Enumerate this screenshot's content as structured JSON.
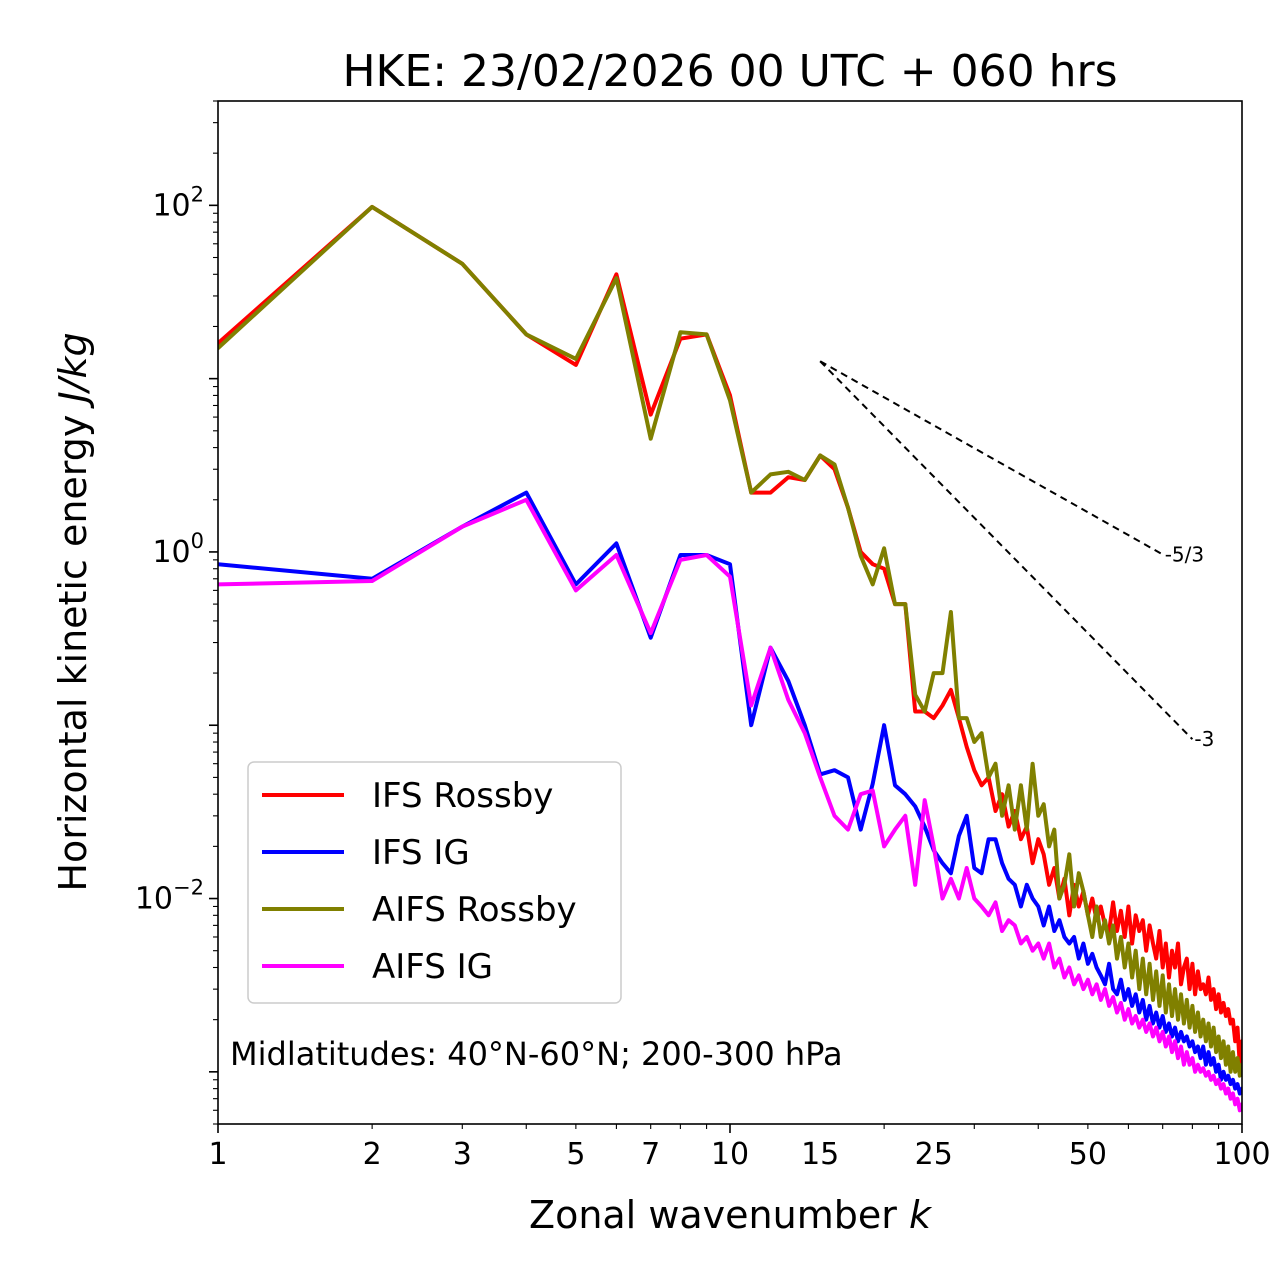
{
  "chart_data": {
    "type": "line",
    "title": "HKE: 23/02/2026 00 UTC + 060 hrs",
    "xlabel": "Zonal wavenumber",
    "xlabel_var": "k",
    "ylabel": "Horizontal kinetic energy",
    "ylabel_unit": "J/kg",
    "xscale": "log",
    "yscale": "log",
    "xlim": [
      1,
      100
    ],
    "ylim": [
      0.0005,
      400
    ],
    "x_ticks": [
      {
        "value": 1,
        "label": "1"
      },
      {
        "value": 2,
        "label": "2"
      },
      {
        "value": 3,
        "label": "3"
      },
      {
        "value": 5,
        "label": "5"
      },
      {
        "value": 7,
        "label": "7"
      },
      {
        "value": 10,
        "label": "10"
      },
      {
        "value": 15,
        "label": "15"
      },
      {
        "value": 25,
        "label": "25"
      },
      {
        "value": 50,
        "label": "50"
      },
      {
        "value": 100,
        "label": "100"
      }
    ],
    "y_ticks": [
      {
        "value": 100,
        "base": "10",
        "exp": "2"
      },
      {
        "value": 1,
        "base": "10",
        "exp": "0"
      },
      {
        "value": 0.01,
        "base": "10",
        "exp": "−2"
      }
    ],
    "annotation": "Midlatitudes: 40°N-60°N; 200-300 hPa",
    "legend_position": "lower-left",
    "reference_slopes": [
      {
        "label": "-5/3",
        "slope": -1.6667,
        "x": [
          15,
          70
        ],
        "y0": 12.6
      },
      {
        "label": "-3",
        "slope": -3,
        "x": [
          15,
          80
        ],
        "y0": 12.6
      }
    ],
    "series": [
      {
        "name": "IFS Rossby",
        "color": "#ff0000",
        "x": [
          1,
          2,
          3,
          4,
          5,
          6,
          7,
          8,
          9,
          10,
          11,
          12,
          13,
          14,
          15,
          16,
          17,
          18,
          19,
          20,
          21,
          22,
          23,
          24,
          25,
          26,
          27,
          28,
          29,
          30,
          31,
          32,
          33,
          34,
          35,
          36,
          37,
          38,
          39,
          40,
          41,
          42,
          43,
          44,
          45,
          46,
          47,
          48,
          49,
          50,
          51,
          52,
          53,
          54,
          55,
          56,
          57,
          58,
          59,
          60,
          61,
          62,
          63,
          64,
          65,
          66,
          67,
          68,
          69,
          70,
          71,
          72,
          73,
          74,
          75,
          76,
          77,
          78,
          79,
          80,
          81,
          82,
          83,
          84,
          85,
          86,
          87,
          88,
          89,
          90,
          91,
          92,
          93,
          94,
          95,
          96,
          97,
          98,
          99,
          100
        ],
        "values": [
          16,
          98,
          46,
          18,
          12,
          40,
          6.2,
          17,
          18,
          8,
          2.2,
          2.2,
          2.7,
          2.6,
          3.6,
          3,
          1.8,
          1.0,
          0.85,
          0.8,
          0.5,
          0.5,
          0.12,
          0.12,
          0.11,
          0.13,
          0.16,
          0.11,
          0.075,
          0.055,
          0.045,
          0.05,
          0.032,
          0.04,
          0.026,
          0.032,
          0.022,
          0.026,
          0.016,
          0.022,
          0.018,
          0.012,
          0.015,
          0.01,
          0.013,
          0.008,
          0.012,
          0.009,
          0.011,
          0.008,
          0.01,
          0.0075,
          0.009,
          0.007,
          0.0065,
          0.0095,
          0.0065,
          0.0085,
          0.006,
          0.009,
          0.0055,
          0.008,
          0.0065,
          0.0075,
          0.005,
          0.007,
          0.0055,
          0.0045,
          0.0065,
          0.004,
          0.0055,
          0.0035,
          0.005,
          0.004,
          0.0055,
          0.0032,
          0.004,
          0.0045,
          0.003,
          0.0042,
          0.0028,
          0.0038,
          0.003,
          0.0032,
          0.0028,
          0.0035,
          0.0026,
          0.003,
          0.0023,
          0.0028,
          0.0022,
          0.0025,
          0.0021,
          0.0023,
          0.0019,
          0.002,
          0.0015,
          0.0018,
          0.0011,
          0.0015
        ]
      },
      {
        "name": "IFS IG",
        "color": "#0000ff",
        "x": [
          1,
          2,
          3,
          4,
          5,
          6,
          7,
          8,
          9,
          10,
          11,
          12,
          13,
          14,
          15,
          16,
          17,
          18,
          19,
          20,
          21,
          22,
          23,
          24,
          25,
          26,
          27,
          28,
          29,
          30,
          31,
          32,
          33,
          34,
          35,
          36,
          37,
          38,
          39,
          40,
          41,
          42,
          43,
          44,
          45,
          46,
          47,
          48,
          49,
          50,
          51,
          52,
          53,
          54,
          55,
          56,
          57,
          58,
          59,
          60,
          61,
          62,
          63,
          64,
          65,
          66,
          67,
          68,
          69,
          70,
          71,
          72,
          73,
          74,
          75,
          76,
          77,
          78,
          79,
          80,
          81,
          82,
          83,
          84,
          85,
          86,
          87,
          88,
          89,
          90,
          91,
          92,
          93,
          94,
          95,
          96,
          97,
          98,
          99,
          100
        ],
        "values": [
          0.85,
          0.7,
          1.4,
          2.2,
          0.65,
          1.12,
          0.32,
          0.96,
          0.96,
          0.85,
          0.1,
          0.28,
          0.18,
          0.1,
          0.052,
          0.055,
          0.05,
          0.025,
          0.046,
          0.1,
          0.045,
          0.04,
          0.034,
          0.026,
          0.019,
          0.016,
          0.014,
          0.023,
          0.03,
          0.015,
          0.014,
          0.022,
          0.022,
          0.016,
          0.013,
          0.012,
          0.009,
          0.012,
          0.01,
          0.009,
          0.007,
          0.009,
          0.0065,
          0.0075,
          0.006,
          0.0055,
          0.006,
          0.0045,
          0.0055,
          0.0042,
          0.0048,
          0.004,
          0.0036,
          0.0032,
          0.0042,
          0.003,
          0.0028,
          0.0034,
          0.0026,
          0.003,
          0.0024,
          0.0028,
          0.0022,
          0.0026,
          0.002,
          0.0024,
          0.0019,
          0.0022,
          0.0018,
          0.0021,
          0.0017,
          0.0019,
          0.0016,
          0.0018,
          0.0015,
          0.0017,
          0.0015,
          0.0016,
          0.0014,
          0.0015,
          0.0013,
          0.0014,
          0.0012,
          0.0014,
          0.0011,
          0.0013,
          0.0011,
          0.0012,
          0.001,
          0.0011,
          0.0009,
          0.001,
          0.0009,
          0.00095,
          0.00085,
          0.0009,
          0.0008,
          0.00085,
          0.00075,
          0.0008
        ]
      },
      {
        "name": "AIFS Rossby",
        "color": "#808000",
        "x": [
          1,
          2,
          3,
          4,
          5,
          6,
          7,
          8,
          9,
          10,
          11,
          12,
          13,
          14,
          15,
          16,
          17,
          18,
          19,
          20,
          21,
          22,
          23,
          24,
          25,
          26,
          27,
          28,
          29,
          30,
          31,
          32,
          33,
          34,
          35,
          36,
          37,
          38,
          39,
          40,
          41,
          42,
          43,
          44,
          45,
          46,
          47,
          48,
          49,
          50,
          51,
          52,
          53,
          54,
          55,
          56,
          57,
          58,
          59,
          60,
          61,
          62,
          63,
          64,
          65,
          66,
          67,
          68,
          69,
          70,
          71,
          72,
          73,
          74,
          75,
          76,
          77,
          78,
          79,
          80,
          81,
          82,
          83,
          84,
          85,
          86,
          87,
          88,
          89,
          90,
          91,
          92,
          93,
          94,
          95,
          96,
          97,
          98,
          99,
          100
        ],
        "values": [
          15,
          98,
          46,
          18,
          13,
          38,
          4.5,
          18.5,
          18,
          7.5,
          2.2,
          2.8,
          2.9,
          2.6,
          3.6,
          3.2,
          1.8,
          0.95,
          0.65,
          1.05,
          0.5,
          0.5,
          0.15,
          0.12,
          0.2,
          0.2,
          0.45,
          0.11,
          0.11,
          0.08,
          0.09,
          0.05,
          0.06,
          0.03,
          0.045,
          0.025,
          0.045,
          0.025,
          0.06,
          0.03,
          0.035,
          0.02,
          0.025,
          0.01,
          0.012,
          0.018,
          0.009,
          0.014,
          0.011,
          0.008,
          0.006,
          0.009,
          0.006,
          0.0075,
          0.0055,
          0.007,
          0.0045,
          0.006,
          0.004,
          0.0055,
          0.0035,
          0.005,
          0.003,
          0.0045,
          0.0028,
          0.0042,
          0.0026,
          0.0038,
          0.0024,
          0.0036,
          0.0022,
          0.0032,
          0.0021,
          0.003,
          0.002,
          0.0028,
          0.0019,
          0.0026,
          0.0018,
          0.0024,
          0.0017,
          0.0022,
          0.0016,
          0.002,
          0.0015,
          0.0019,
          0.0014,
          0.0018,
          0.0013,
          0.0016,
          0.0012,
          0.0015,
          0.0011,
          0.0014,
          0.001,
          0.0013,
          0.001,
          0.0012,
          0.00095,
          0.0011
        ]
      },
      {
        "name": "AIFS IG",
        "color": "#ff00ff",
        "x": [
          1,
          2,
          3,
          4,
          5,
          6,
          7,
          8,
          9,
          10,
          11,
          12,
          13,
          14,
          15,
          16,
          17,
          18,
          19,
          20,
          21,
          22,
          23,
          24,
          25,
          26,
          27,
          28,
          29,
          30,
          31,
          32,
          33,
          34,
          35,
          36,
          37,
          38,
          39,
          40,
          41,
          42,
          43,
          44,
          45,
          46,
          47,
          48,
          49,
          50,
          51,
          52,
          53,
          54,
          55,
          56,
          57,
          58,
          59,
          60,
          61,
          62,
          63,
          64,
          65,
          66,
          67,
          68,
          69,
          70,
          71,
          72,
          73,
          74,
          75,
          76,
          77,
          78,
          79,
          80,
          81,
          82,
          83,
          84,
          85,
          86,
          87,
          88,
          89,
          90,
          91,
          92,
          93,
          94,
          95,
          96,
          97,
          98,
          99,
          100
        ],
        "values": [
          0.65,
          0.68,
          1.4,
          2,
          0.6,
          0.96,
          0.34,
          0.9,
          0.96,
          0.72,
          0.13,
          0.28,
          0.14,
          0.09,
          0.05,
          0.03,
          0.025,
          0.04,
          0.042,
          0.02,
          0.025,
          0.03,
          0.012,
          0.037,
          0.02,
          0.01,
          0.013,
          0.01,
          0.015,
          0.01,
          0.009,
          0.008,
          0.0095,
          0.0065,
          0.0075,
          0.007,
          0.0055,
          0.006,
          0.005,
          0.0055,
          0.0045,
          0.0055,
          0.004,
          0.0045,
          0.0035,
          0.004,
          0.0032,
          0.0036,
          0.003,
          0.0034,
          0.0028,
          0.0032,
          0.0026,
          0.003,
          0.0024,
          0.0027,
          0.0022,
          0.0025,
          0.002,
          0.0023,
          0.0019,
          0.0021,
          0.0018,
          0.002,
          0.0017,
          0.0019,
          0.0016,
          0.0018,
          0.0015,
          0.0017,
          0.0014,
          0.0016,
          0.0013,
          0.0015,
          0.0012,
          0.0014,
          0.0011,
          0.0013,
          0.0011,
          0.0012,
          0.001,
          0.0011,
          0.001,
          0.00105,
          0.00095,
          0.001,
          0.0009,
          0.00095,
          0.00085,
          0.0009,
          0.0008,
          0.00085,
          0.00075,
          0.0008,
          0.0007,
          0.00075,
          0.00065,
          0.0007,
          0.0006,
          0.00065
        ]
      }
    ]
  }
}
